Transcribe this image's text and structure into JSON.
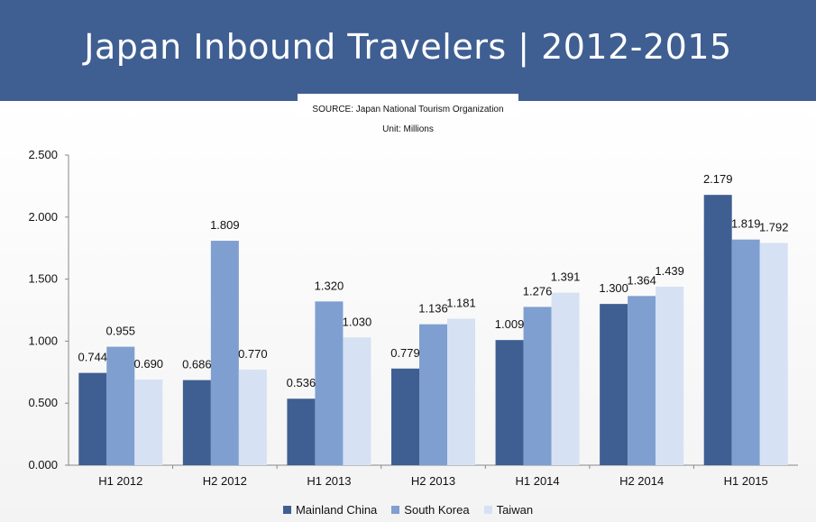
{
  "chart_data": {
    "type": "bar",
    "title": "Japan Inbound Travelers | 2012-2015",
    "source": "SOURCE: Japan National Tourism Organization",
    "unit": "Unit: Millions",
    "categories": [
      "H1 2012",
      "H2 2012",
      "H1 2013",
      "H2 2013",
      "H1 2014",
      "H2 2014",
      "H1 2015"
    ],
    "series": [
      {
        "name": "Mainland China",
        "color": "#3f5f93",
        "values": [
          0.744,
          0.686,
          0.536,
          0.779,
          1.009,
          1.3,
          2.179
        ],
        "labels": [
          "0.744",
          "0.686",
          "0.536",
          "0.779",
          "1.009",
          "1.300",
          "2.179"
        ]
      },
      {
        "name": "South Korea",
        "color": "#7f9fd0",
        "values": [
          0.955,
          1.809,
          1.32,
          1.136,
          1.276,
          1.364,
          1.819
        ],
        "labels": [
          "0.955",
          "1.809",
          "1.320",
          "1.136",
          "1.276",
          "1.364",
          "1.819"
        ]
      },
      {
        "name": "Taiwan",
        "color": "#d6e1f3",
        "values": [
          0.69,
          0.77,
          1.03,
          1.181,
          1.391,
          1.439,
          1.792
        ],
        "labels": [
          "0.690",
          "0.770",
          "1.030",
          "1.181",
          "1.391",
          "1.439",
          "1.792"
        ]
      }
    ],
    "ylim": [
      0,
      2.5
    ],
    "yticks": [
      "0.000",
      "0.500",
      "1.000",
      "1.500",
      "2.000",
      "2.500"
    ],
    "grid": false,
    "legend": "bottom"
  }
}
